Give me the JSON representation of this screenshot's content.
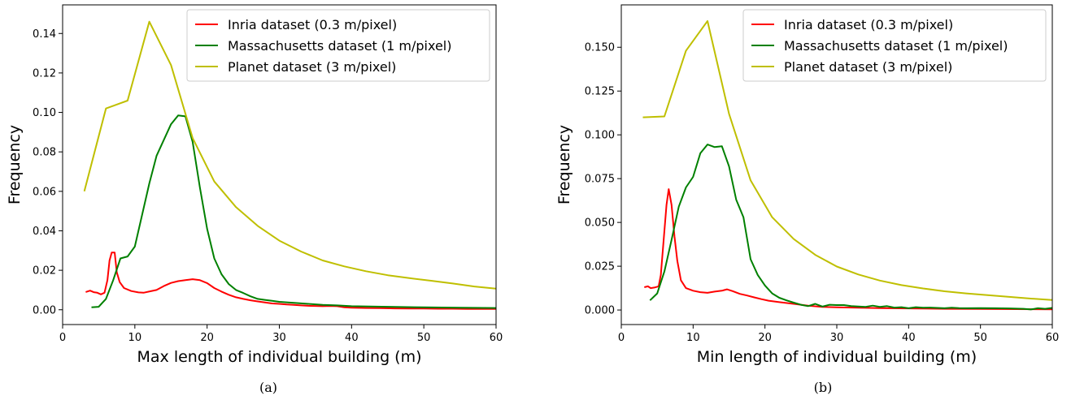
{
  "chart_data": [
    {
      "type": "line",
      "caption": "(a)",
      "xlabel": "Max length of individual building (m)",
      "ylabel": "Frequency",
      "xlim": [
        0,
        60
      ],
      "ylim": [
        -0.0075,
        0.1545
      ],
      "xticks": [
        0,
        10,
        20,
        30,
        40,
        50,
        60
      ],
      "yticks": [
        0.0,
        0.02,
        0.04,
        0.06,
        0.08,
        0.1,
        0.12,
        0.14
      ],
      "ytick_labels": [
        "0.00",
        "0.02",
        "0.04",
        "0.06",
        "0.08",
        "0.10",
        "0.12",
        "0.14"
      ],
      "grid": false,
      "legend_position": "top-right",
      "series": [
        {
          "name": "Inria dataset (0.3 m/pixel)",
          "color": "#ff0000",
          "points": [
            [
              3.2,
              0.009
            ],
            [
              3.8,
              0.0097
            ],
            [
              4.3,
              0.0089
            ],
            [
              4.8,
              0.0086
            ],
            [
              5.3,
              0.0078
            ],
            [
              5.8,
              0.0086
            ],
            [
              6.2,
              0.015
            ],
            [
              6.5,
              0.025
            ],
            [
              6.8,
              0.029
            ],
            [
              7.2,
              0.029
            ],
            [
              7.5,
              0.019
            ],
            [
              7.9,
              0.014
            ],
            [
              8.5,
              0.011
            ],
            [
              9.5,
              0.0095
            ],
            [
              10.5,
              0.0088
            ],
            [
              11.2,
              0.0086
            ],
            [
              12.2,
              0.0094
            ],
            [
              13,
              0.01
            ],
            [
              14,
              0.012
            ],
            [
              15,
              0.0136
            ],
            [
              16,
              0.0145
            ],
            [
              17,
              0.015
            ],
            [
              18,
              0.0155
            ],
            [
              19,
              0.015
            ],
            [
              20,
              0.0135
            ],
            [
              21,
              0.011
            ],
            [
              22,
              0.0092
            ],
            [
              23,
              0.0076
            ],
            [
              24,
              0.0063
            ],
            [
              25,
              0.0055
            ],
            [
              26,
              0.0048
            ],
            [
              27,
              0.0042
            ],
            [
              28,
              0.0037
            ],
            [
              29,
              0.0032
            ],
            [
              30,
              0.003
            ],
            [
              31,
              0.0027
            ],
            [
              32,
              0.0025
            ],
            [
              33,
              0.0022
            ],
            [
              34,
              0.002
            ],
            [
              35,
              0.0019
            ],
            [
              36,
              0.0018
            ],
            [
              37,
              0.0019
            ],
            [
              38,
              0.0018
            ],
            [
              39,
              0.0012
            ],
            [
              40,
              0.001
            ],
            [
              42,
              0.0009
            ],
            [
              44,
              0.0008
            ],
            [
              46,
              0.0007
            ],
            [
              48,
              0.0006
            ],
            [
              50,
              0.0006
            ],
            [
              52,
              0.0005
            ],
            [
              54,
              0.0005
            ],
            [
              56,
              0.0004
            ],
            [
              58,
              0.0004
            ],
            [
              60,
              0.0004
            ]
          ]
        },
        {
          "name": "Massachusetts dataset (1 m/pixel)",
          "color": "#008000",
          "points": [
            [
              4,
              0.0012
            ],
            [
              5,
              0.0015
            ],
            [
              6,
              0.0055
            ],
            [
              7,
              0.015
            ],
            [
              8,
              0.026
            ],
            [
              9,
              0.027
            ],
            [
              10,
              0.032
            ],
            [
              11,
              0.048
            ],
            [
              12,
              0.064
            ],
            [
              13,
              0.078
            ],
            [
              14,
              0.086
            ],
            [
              15,
              0.094
            ],
            [
              16,
              0.0985
            ],
            [
              17,
              0.098
            ],
            [
              18,
              0.085
            ],
            [
              19,
              0.062
            ],
            [
              20,
              0.041
            ],
            [
              21,
              0.026
            ],
            [
              22,
              0.018
            ],
            [
              23,
              0.013
            ],
            [
              24,
              0.01
            ],
            [
              25,
              0.0085
            ],
            [
              26,
              0.0068
            ],
            [
              27,
              0.0055
            ],
            [
              28,
              0.005
            ],
            [
              29,
              0.0045
            ],
            [
              30,
              0.004
            ],
            [
              32,
              0.0035
            ],
            [
              34,
              0.003
            ],
            [
              36,
              0.0025
            ],
            [
              38,
              0.0022
            ],
            [
              40,
              0.0018
            ],
            [
              45,
              0.0015
            ],
            [
              50,
              0.0012
            ],
            [
              55,
              0.001
            ],
            [
              60,
              0.0009
            ]
          ]
        },
        {
          "name": "Planet dataset (3 m/pixel)",
          "color": "#bfbf00",
          "points": [
            [
              3,
              0.06
            ],
            [
              6,
              0.102
            ],
            [
              9,
              0.106
            ],
            [
              12,
              0.146
            ],
            [
              15,
              0.124
            ],
            [
              18,
              0.087
            ],
            [
              21,
              0.065
            ],
            [
              24,
              0.052
            ],
            [
              27,
              0.0425
            ],
            [
              30,
              0.035
            ],
            [
              33,
              0.0295
            ],
            [
              36,
              0.025
            ],
            [
              39,
              0.022
            ],
            [
              42,
              0.0195
            ],
            [
              45,
              0.0175
            ],
            [
              48,
              0.016
            ],
            [
              51,
              0.0147
            ],
            [
              54,
              0.0133
            ],
            [
              57,
              0.0118
            ],
            [
              60,
              0.0107
            ]
          ]
        }
      ]
    },
    {
      "type": "line",
      "caption": "(b)",
      "xlabel": "Min length of individual building (m)",
      "ylabel": "Frequency",
      "xlim": [
        0,
        60
      ],
      "ylim": [
        -0.0083,
        0.1742
      ],
      "xticks": [
        0,
        10,
        20,
        30,
        40,
        50,
        60
      ],
      "yticks": [
        0.0,
        0.025,
        0.05,
        0.075,
        0.1,
        0.125,
        0.15
      ],
      "ytick_labels": [
        "0.000",
        "0.025",
        "0.050",
        "0.075",
        "0.100",
        "0.125",
        "0.150"
      ],
      "grid": false,
      "legend_position": "top-right",
      "series": [
        {
          "name": "Inria dataset (0.3 m/pixel)",
          "color": "#ff0000",
          "points": [
            [
              3.2,
              0.013
            ],
            [
              3.7,
              0.0135
            ],
            [
              4.1,
              0.0125
            ],
            [
              4.6,
              0.0128
            ],
            [
              5.2,
              0.0135
            ],
            [
              5.5,
              0.02
            ],
            [
              5.9,
              0.04
            ],
            [
              6.3,
              0.06
            ],
            [
              6.6,
              0.069
            ],
            [
              7,
              0.06
            ],
            [
              7.4,
              0.042
            ],
            [
              7.8,
              0.028
            ],
            [
              8.3,
              0.017
            ],
            [
              9,
              0.0125
            ],
            [
              10,
              0.011
            ],
            [
              11,
              0.0102
            ],
            [
              12,
              0.0098
            ],
            [
              13,
              0.0105
            ],
            [
              14,
              0.011
            ],
            [
              14.7,
              0.0118
            ],
            [
              15.5,
              0.0108
            ],
            [
              16.5,
              0.0092
            ],
            [
              17.5,
              0.0083
            ],
            [
              18.5,
              0.0072
            ],
            [
              19.5,
              0.0062
            ],
            [
              20.5,
              0.0053
            ],
            [
              22,
              0.0045
            ],
            [
              24,
              0.0035
            ],
            [
              26,
              0.0025
            ],
            [
              28,
              0.0018
            ],
            [
              30,
              0.0015
            ],
            [
              33,
              0.0013
            ],
            [
              36,
              0.0011
            ],
            [
              40,
              0.0009
            ],
            [
              45,
              0.0007
            ],
            [
              50,
              0.0006
            ],
            [
              55,
              0.0005
            ],
            [
              60,
              0.0004
            ]
          ]
        },
        {
          "name": "Massachusetts dataset (1 m/pixel)",
          "color": "#008000",
          "points": [
            [
              4,
              0.0055
            ],
            [
              5,
              0.0095
            ],
            [
              6,
              0.022
            ],
            [
              7,
              0.04
            ],
            [
              8,
              0.059
            ],
            [
              9,
              0.07
            ],
            [
              10,
              0.076
            ],
            [
              11,
              0.0895
            ],
            [
              12,
              0.0945
            ],
            [
              13,
              0.093
            ],
            [
              14,
              0.0935
            ],
            [
              15,
              0.082
            ],
            [
              16,
              0.063
            ],
            [
              17,
              0.053
            ],
            [
              18,
              0.029
            ],
            [
              19,
              0.02
            ],
            [
              20,
              0.014
            ],
            [
              21,
              0.0095
            ],
            [
              22,
              0.007
            ],
            [
              23,
              0.0055
            ],
            [
              24,
              0.0042
            ],
            [
              25,
              0.003
            ],
            [
              26,
              0.0022
            ],
            [
              27,
              0.0035
            ],
            [
              28,
              0.002
            ],
            [
              29,
              0.003
            ],
            [
              30,
              0.0028
            ],
            [
              31,
              0.0028
            ],
            [
              32,
              0.0022
            ],
            [
              33,
              0.002
            ],
            [
              34,
              0.0018
            ],
            [
              35,
              0.0025
            ],
            [
              36,
              0.0018
            ],
            [
              37,
              0.0022
            ],
            [
              38,
              0.0014
            ],
            [
              39,
              0.0016
            ],
            [
              40,
              0.001
            ],
            [
              41,
              0.0016
            ],
            [
              42,
              0.0013
            ],
            [
              43,
              0.0014
            ],
            [
              44,
              0.0012
            ],
            [
              45,
              0.001
            ],
            [
              46,
              0.0013
            ],
            [
              47,
              0.0011
            ],
            [
              48,
              0.001
            ],
            [
              50,
              0.0011
            ],
            [
              52,
              0.001
            ],
            [
              54,
              0.0009
            ],
            [
              56,
              0.0007
            ],
            [
              57,
              0.0003
            ],
            [
              58,
              0.001
            ],
            [
              59,
              0.0007
            ],
            [
              60,
              0.0012
            ]
          ]
        },
        {
          "name": "Planet dataset (3 m/pixel)",
          "color": "#bfbf00",
          "points": [
            [
              3,
              0.11
            ],
            [
              6,
              0.1105
            ],
            [
              9,
              0.148
            ],
            [
              12,
              0.165
            ],
            [
              15,
              0.112
            ],
            [
              18,
              0.074
            ],
            [
              21,
              0.053
            ],
            [
              24,
              0.0405
            ],
            [
              27,
              0.0315
            ],
            [
              30,
              0.0248
            ],
            [
              33,
              0.0203
            ],
            [
              36,
              0.0168
            ],
            [
              39,
              0.0142
            ],
            [
              42,
              0.0123
            ],
            [
              45,
              0.0107
            ],
            [
              48,
              0.0095
            ],
            [
              51,
              0.0085
            ],
            [
              54,
              0.0075
            ],
            [
              57,
              0.0065
            ],
            [
              60,
              0.0057
            ]
          ]
        }
      ]
    }
  ]
}
